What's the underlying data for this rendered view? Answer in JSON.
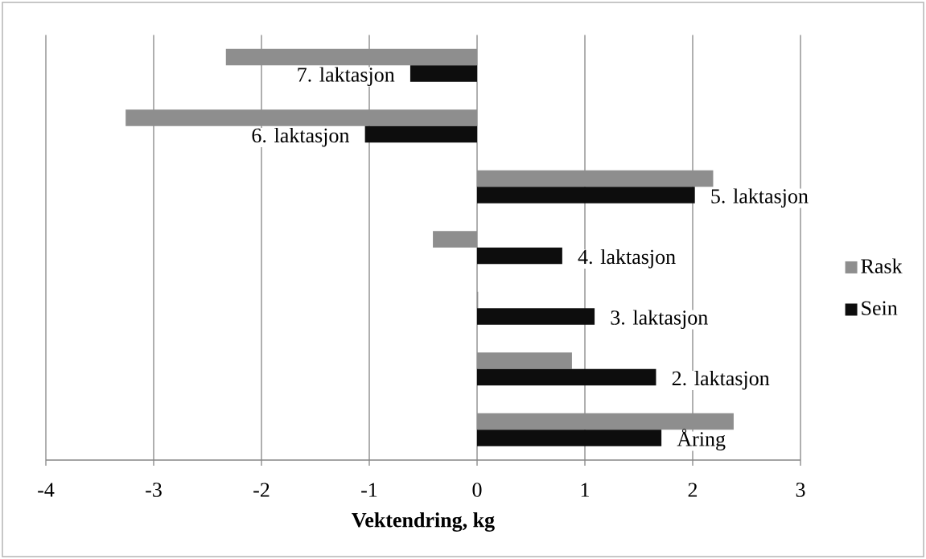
{
  "chart_data": {
    "type": "bar",
    "orientation": "horizontal",
    "xlabel": "Vektendring, kg",
    "categories": [
      "7. laktasjon",
      "6. laktasjon",
      "5. laktasjon",
      "4. laktasjon",
      "3. laktasjon",
      "2. laktasjon",
      "Åring"
    ],
    "series": [
      {
        "name": "Rask",
        "color": "#8e8e8e",
        "values": [
          -2.33,
          -3.26,
          2.19,
          -0.41,
          0.01,
          0.88,
          2.38
        ]
      },
      {
        "name": "Sein",
        "color": "#0d0d0d",
        "values": [
          -0.62,
          -1.04,
          2.02,
          0.79,
          1.09,
          1.66,
          1.71
        ]
      }
    ],
    "xlim": [
      -4,
      3
    ],
    "xticks": [
      -4,
      -3,
      -2,
      -1,
      0,
      1,
      2,
      3
    ],
    "grid": "x",
    "legend": "right"
  }
}
